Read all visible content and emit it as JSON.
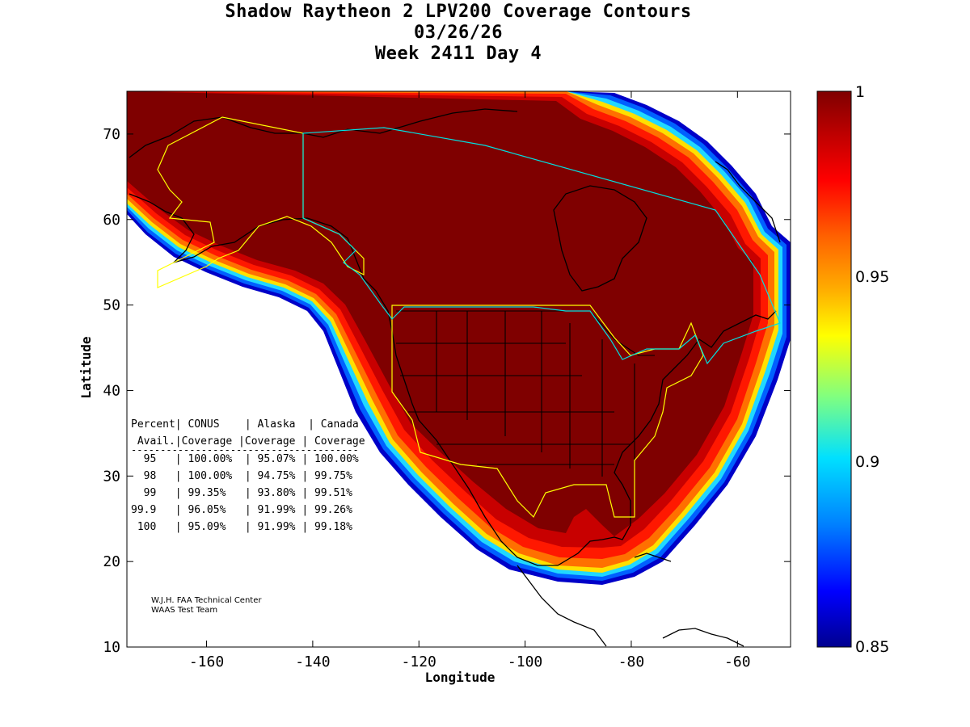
{
  "title": {
    "line1": "Shadow Raytheon 2 LPV200 Coverage Contours",
    "line2": "03/26/26",
    "line3": "Week 2411 Day 4"
  },
  "axes": {
    "xlabel": "Longitude",
    "ylabel": "Latitude",
    "xlim": [
      -175,
      -50
    ],
    "ylim": [
      10,
      75
    ],
    "x_ticks": [
      -160,
      -140,
      -120,
      -100,
      -80,
      -60
    ],
    "y_ticks": [
      10,
      20,
      30,
      40,
      50,
      60,
      70
    ]
  },
  "colorbar": {
    "min": 0.85,
    "max": 1,
    "tick_labels": [
      "1",
      "0.95",
      "0.9",
      "0.85"
    ],
    "colors": [
      "#7f0000",
      "#ff0000",
      "#ff8000",
      "#ffff00",
      "#80ff80",
      "#00ffff",
      "#0080ff",
      "#0000ff",
      "#00008f"
    ]
  },
  "table": {
    "header1": "Percent| CONUS    | Alaska  | Canada",
    "header2": " Avail.|Coverage |Coverage | Coverage",
    "separator": "---------------------------------------",
    "rows": [
      "  95   | 100.00%  | 95.07% | 100.00%",
      "  98   | 100.00%  | 94.75% | 99.75%",
      "  99   | 99.35%   | 93.80% | 99.51%",
      "99.9   | 96.05%   | 91.99% | 99.26%",
      " 100   | 95.09%   | 91.99% | 99.18%"
    ]
  },
  "credit": {
    "line1": "W.J.H. FAA Technical Center",
    "line2": "WAAS Test Team"
  }
}
